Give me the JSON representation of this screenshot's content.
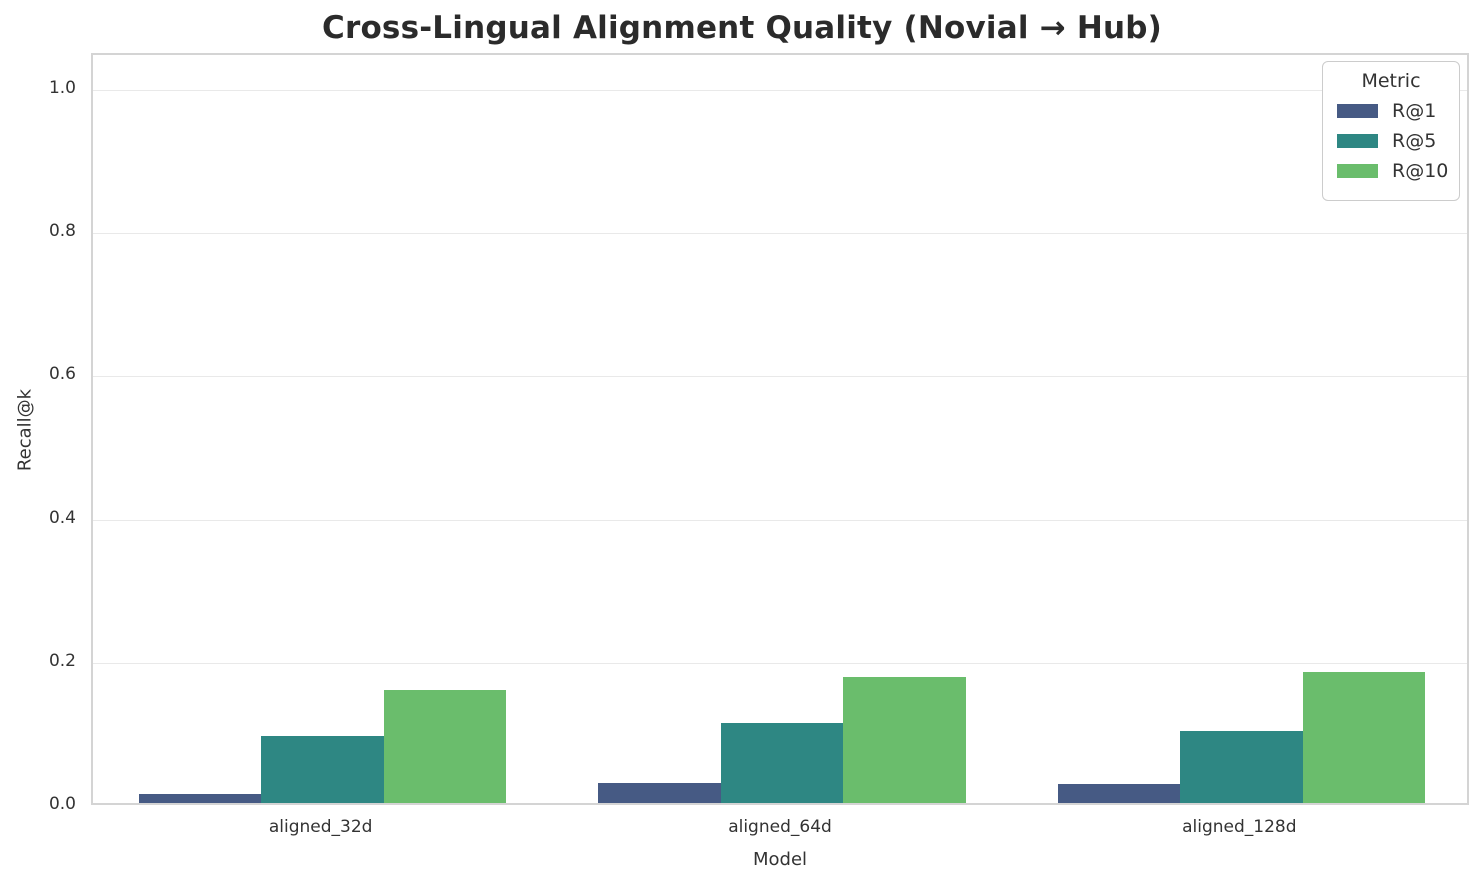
{
  "title": "Cross-Lingual Alignment Quality (Novial → Hub)",
  "chart_data": {
    "type": "bar",
    "title": "Cross-Lingual Alignment Quality (Novial → Hub)",
    "xlabel": "Model",
    "ylabel": "Recall@k",
    "categories": [
      "aligned_32d",
      "aligned_64d",
      "aligned_128d"
    ],
    "series": [
      {
        "name": "R@1",
        "color": "#465a84",
        "values": [
          0.013,
          0.028,
          0.026
        ]
      },
      {
        "name": "R@5",
        "color": "#2e8783",
        "values": [
          0.094,
          0.112,
          0.101
        ]
      },
      {
        "name": "R@10",
        "color": "#6abd6c",
        "values": [
          0.158,
          0.176,
          0.183
        ]
      }
    ],
    "ylim": [
      0,
      1.05
    ],
    "yticks": [
      {
        "value": 0.0,
        "label": "0.0"
      },
      {
        "value": 0.2,
        "label": "0.2"
      },
      {
        "value": 0.4,
        "label": "0.4"
      },
      {
        "value": 0.6,
        "label": "0.6"
      },
      {
        "value": 0.8,
        "label": "0.8"
      },
      {
        "value": 1.0,
        "label": "1.0"
      }
    ],
    "grid": true,
    "group_width_fraction": 0.8,
    "legend": {
      "title": "Metric",
      "position": "upper right"
    }
  },
  "colors": {
    "background": "#ffffff",
    "grid": "#e9e9e9",
    "spine": "#d4d4d4",
    "text": "#333333",
    "title_text": "#2b2b2b"
  }
}
